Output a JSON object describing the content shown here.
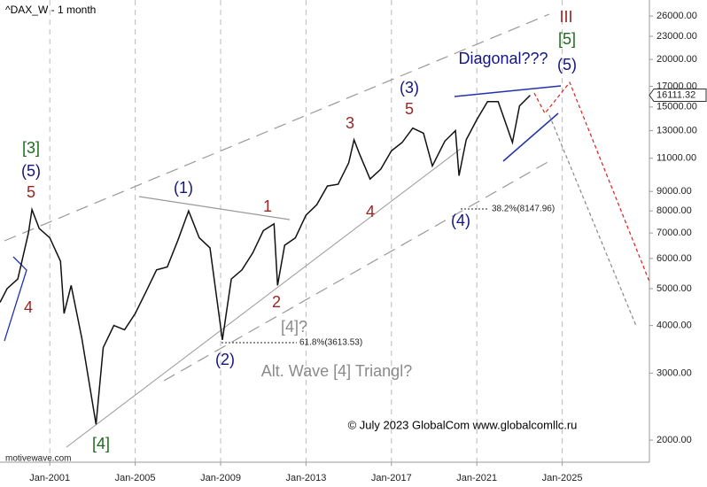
{
  "chart_data": {
    "type": "line",
    "title": "^DAX_W - 1 month",
    "x": [
      "1998-09",
      "1999-01",
      "1999-07",
      "2000-01",
      "2000-03",
      "2000-07",
      "2001-01",
      "2001-07",
      "2001-09",
      "2002-01",
      "2002-07",
      "2003-03",
      "2003-07",
      "2004-01",
      "2004-07",
      "2005-01",
      "2005-07",
      "2006-01",
      "2006-07",
      "2007-01",
      "2007-07",
      "2008-01",
      "2008-07",
      "2009-02",
      "2009-07",
      "2010-01",
      "2010-07",
      "2011-01",
      "2011-07",
      "2011-09",
      "2012-01",
      "2012-07",
      "2013-01",
      "2013-07",
      "2014-01",
      "2014-07",
      "2015-01",
      "2015-04",
      "2015-07",
      "2016-01",
      "2016-07",
      "2017-01",
      "2017-07",
      "2018-01",
      "2018-07",
      "2018-12",
      "2019-07",
      "2020-01",
      "2020-03",
      "2020-07",
      "2021-01",
      "2021-07",
      "2022-01",
      "2022-09",
      "2023-01",
      "2023-07"
    ],
    "values": [
      4600,
      5000,
      5300,
      7000,
      8065,
      7200,
      6800,
      5900,
      4300,
      5100,
      3700,
      2200,
      3500,
      4000,
      3900,
      4300,
      4900,
      5600,
      5700,
      6700,
      8000,
      6800,
      6400,
      3666,
      5300,
      5600,
      6200,
      7100,
      7400,
      5100,
      6500,
      6800,
      7800,
      8300,
      9300,
      9400,
      10700,
      12300,
      11300,
      9700,
      10300,
      11500,
      12100,
      13200,
      12800,
      10500,
      12200,
      13000,
      9900,
      12300,
      13900,
      15500,
      15500,
      12100,
      15100,
      16100
    ],
    "color": "#111111",
    "log_scale": true,
    "ylim": [
      1750,
      28650
    ],
    "yticks": [
      {
        "value": 2000,
        "label": "2000.00"
      },
      {
        "value": 3000,
        "label": "3000.00"
      },
      {
        "value": 4000,
        "label": "4000.00"
      },
      {
        "value": 5000,
        "label": "5000.00"
      },
      {
        "value": 6000,
        "label": "6000.00"
      },
      {
        "value": 7000,
        "label": "7000.00"
      },
      {
        "value": 8000,
        "label": "8000.00"
      },
      {
        "value": 9000,
        "label": "9000.00"
      },
      {
        "value": 11000,
        "label": "11000.00"
      },
      {
        "value": 13000,
        "label": "13000.00"
      },
      {
        "value": 15000,
        "label": "15000.00"
      },
      {
        "value": 17000,
        "label": "17000.00"
      },
      {
        "value": 20000,
        "label": "20000.00"
      },
      {
        "value": 23000,
        "label": "23000.00"
      },
      {
        "value": 26000,
        "label": "26000.00"
      }
    ],
    "xlim": [
      "1998-09",
      "2029-02"
    ],
    "xticks": [
      {
        "value": "2001-01",
        "label": "Jan-2001"
      },
      {
        "value": "2005-01",
        "label": "Jan-2005"
      },
      {
        "value": "2009-01",
        "label": "Jan-2009"
      },
      {
        "value": "2013-01",
        "label": "Jan-2013"
      },
      {
        "value": "2017-01",
        "label": "Jan-2017"
      },
      {
        "value": "2021-01",
        "label": "Jan-2021"
      },
      {
        "value": "2025-01",
        "label": "Jan-2025"
      }
    ],
    "grid": true,
    "last_price": 16111.32,
    "annotations": [
      "[3]",
      "(5)",
      "5",
      "4",
      "(1)",
      "1",
      "2",
      "[4]?",
      "(2)",
      "Alt. Wave [4] Triangl?",
      "[4]",
      "3",
      "5",
      "4",
      "(3)",
      "(4)",
      "Diagonal???",
      "(5)",
      "[5]",
      "III",
      "38.2%(8147.96)",
      "61.8%(3613.53)"
    ],
    "watermark": "motivewave.com",
    "copyright": "© July 2023 GlobalCom www.globalcomllc.ru"
  }
}
